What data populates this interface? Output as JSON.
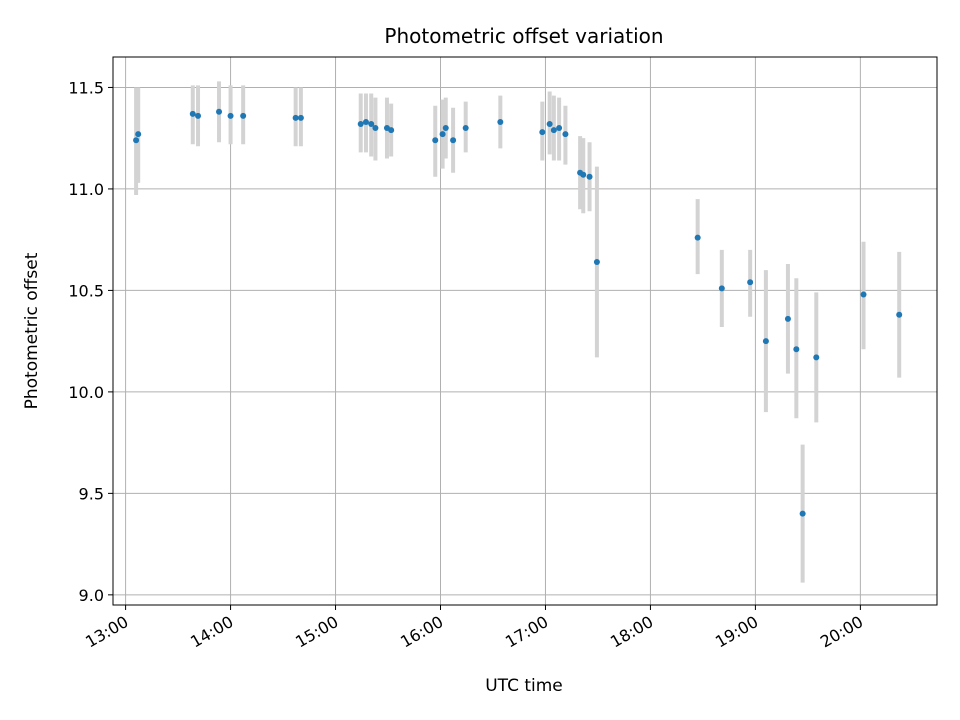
{
  "chart_data": {
    "type": "scatter",
    "title": "Photometric offset variation",
    "xlabel": "UTC time",
    "ylabel": "Photometric offset",
    "x_unit": "hours UTC",
    "xlim": [
      12.88,
      20.73
    ],
    "ylim": [
      8.95,
      11.65
    ],
    "grid": true,
    "x_ticks": [
      {
        "value": 13,
        "label": "13:00"
      },
      {
        "value": 14,
        "label": "14:00"
      },
      {
        "value": 15,
        "label": "15:00"
      },
      {
        "value": 16,
        "label": "16:00"
      },
      {
        "value": 17,
        "label": "17:00"
      },
      {
        "value": 18,
        "label": "18:00"
      },
      {
        "value": 19,
        "label": "19:00"
      },
      {
        "value": 20,
        "label": "20:00"
      }
    ],
    "y_ticks": [
      {
        "value": 9.0,
        "label": "9.0"
      },
      {
        "value": 9.5,
        "label": "9.5"
      },
      {
        "value": 10.0,
        "label": "10.0"
      },
      {
        "value": 10.5,
        "label": "10.5"
      },
      {
        "value": 11.0,
        "label": "11.0"
      },
      {
        "value": 11.5,
        "label": "11.5"
      }
    ],
    "colors": {
      "point": "#1f77b4",
      "errorbar": "#d3d3d3",
      "grid": "#b0b0b0"
    },
    "points": [
      {
        "x": 13.1,
        "y": 11.24,
        "low": 10.97,
        "high": 11.5
      },
      {
        "x": 13.12,
        "y": 11.27,
        "low": 11.03,
        "high": 11.5
      },
      {
        "x": 13.64,
        "y": 11.37,
        "low": 11.22,
        "high": 11.51
      },
      {
        "x": 13.69,
        "y": 11.36,
        "low": 11.21,
        "high": 11.51
      },
      {
        "x": 13.89,
        "y": 11.38,
        "low": 11.23,
        "high": 11.53
      },
      {
        "x": 14.0,
        "y": 11.36,
        "low": 11.22,
        "high": 11.51
      },
      {
        "x": 14.12,
        "y": 11.36,
        "low": 11.22,
        "high": 11.51
      },
      {
        "x": 14.62,
        "y": 11.35,
        "low": 11.21,
        "high": 11.5
      },
      {
        "x": 14.67,
        "y": 11.35,
        "low": 11.21,
        "high": 11.5
      },
      {
        "x": 15.24,
        "y": 11.32,
        "low": 11.18,
        "high": 11.47
      },
      {
        "x": 15.29,
        "y": 11.33,
        "low": 11.18,
        "high": 11.47
      },
      {
        "x": 15.34,
        "y": 11.32,
        "low": 11.16,
        "high": 11.47
      },
      {
        "x": 15.38,
        "y": 11.3,
        "low": 11.14,
        "high": 11.45
      },
      {
        "x": 15.49,
        "y": 11.3,
        "low": 11.15,
        "high": 11.45
      },
      {
        "x": 15.53,
        "y": 11.29,
        "low": 11.16,
        "high": 11.42
      },
      {
        "x": 15.95,
        "y": 11.24,
        "low": 11.06,
        "high": 11.41
      },
      {
        "x": 16.02,
        "y": 11.27,
        "low": 11.1,
        "high": 11.44
      },
      {
        "x": 16.05,
        "y": 11.3,
        "low": 11.15,
        "high": 11.45
      },
      {
        "x": 16.12,
        "y": 11.24,
        "low": 11.08,
        "high": 11.4
      },
      {
        "x": 16.24,
        "y": 11.3,
        "low": 11.18,
        "high": 11.43
      },
      {
        "x": 16.57,
        "y": 11.33,
        "low": 11.2,
        "high": 11.46
      },
      {
        "x": 16.97,
        "y": 11.28,
        "low": 11.14,
        "high": 11.43
      },
      {
        "x": 17.04,
        "y": 11.32,
        "low": 11.17,
        "high": 11.48
      },
      {
        "x": 17.08,
        "y": 11.29,
        "low": 11.14,
        "high": 11.46
      },
      {
        "x": 17.13,
        "y": 11.3,
        "low": 11.14,
        "high": 11.45
      },
      {
        "x": 17.19,
        "y": 11.27,
        "low": 11.12,
        "high": 11.41
      },
      {
        "x": 17.33,
        "y": 11.08,
        "low": 10.9,
        "high": 11.26
      },
      {
        "x": 17.36,
        "y": 11.07,
        "low": 10.88,
        "high": 11.25
      },
      {
        "x": 17.42,
        "y": 11.06,
        "low": 10.89,
        "high": 11.23
      },
      {
        "x": 17.49,
        "y": 10.64,
        "low": 10.17,
        "high": 11.11
      },
      {
        "x": 18.45,
        "y": 10.76,
        "low": 10.58,
        "high": 10.95
      },
      {
        "x": 18.68,
        "y": 10.51,
        "low": 10.32,
        "high": 10.7
      },
      {
        "x": 18.95,
        "y": 10.54,
        "low": 10.37,
        "high": 10.7
      },
      {
        "x": 19.1,
        "y": 10.25,
        "low": 9.9,
        "high": 10.6
      },
      {
        "x": 19.31,
        "y": 10.36,
        "low": 10.09,
        "high": 10.63
      },
      {
        "x": 19.39,
        "y": 10.21,
        "low": 9.87,
        "high": 10.56
      },
      {
        "x": 19.45,
        "y": 9.4,
        "low": 9.06,
        "high": 9.74
      },
      {
        "x": 19.58,
        "y": 10.17,
        "low": 9.85,
        "high": 10.49
      },
      {
        "x": 20.03,
        "y": 10.48,
        "low": 10.21,
        "high": 10.74
      },
      {
        "x": 20.37,
        "y": 10.38,
        "low": 10.07,
        "high": 10.69
      }
    ]
  }
}
